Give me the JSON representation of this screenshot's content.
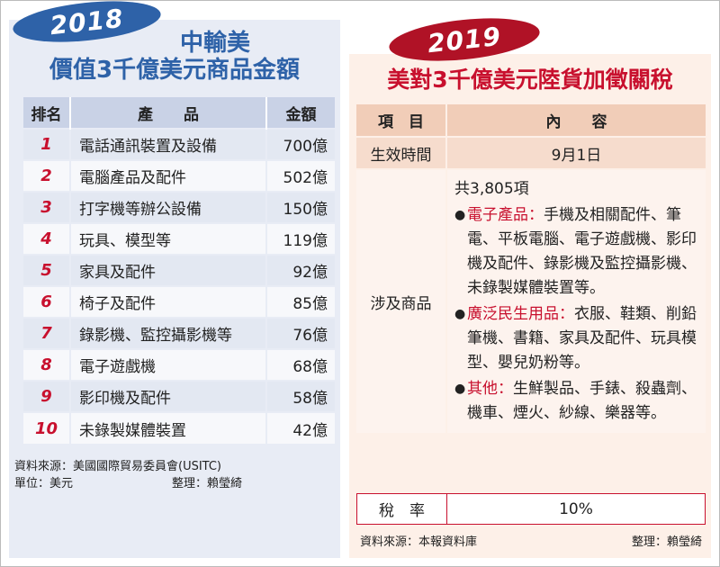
{
  "left": {
    "year": "2018",
    "title_line1": "中輸美",
    "title_line2": "價值3千億美元商品金額",
    "headers": {
      "rank": "排名",
      "product": "產　　品",
      "amount": "金額"
    },
    "rows": [
      {
        "rank": "1",
        "product": "電話通訊裝置及設備",
        "amount": "700億"
      },
      {
        "rank": "2",
        "product": "電腦產品及配件",
        "amount": "502億"
      },
      {
        "rank": "3",
        "product": "打字機等辦公設備",
        "amount": "150億"
      },
      {
        "rank": "4",
        "product": "玩具、模型等",
        "amount": "119億"
      },
      {
        "rank": "5",
        "product": "家具及配件",
        "amount": "92億"
      },
      {
        "rank": "6",
        "product": "椅子及配件",
        "amount": "85億"
      },
      {
        "rank": "7",
        "product": "錄影機、監控攝影機等",
        "amount": "76億"
      },
      {
        "rank": "8",
        "product": "電子遊戲機",
        "amount": "68億"
      },
      {
        "rank": "9",
        "product": "影印機及配件",
        "amount": "58億"
      },
      {
        "rank": "10",
        "product": "未錄製媒體裝置",
        "amount": "42億"
      }
    ],
    "source": "資料來源：美國國際貿易委員會(USITC)",
    "unit": "單位：美元",
    "editor": "整理：賴瑩綺"
  },
  "right": {
    "year": "2019",
    "title": "美對3千億美元陸貨加徵關稅",
    "headers": {
      "item": "項　目",
      "content": "內　　容"
    },
    "effective": {
      "label": "生效時間",
      "value": "9月1日"
    },
    "goods": {
      "label": "涉及商品",
      "total": "共3,805項",
      "categories": [
        {
          "name": "電子產品：",
          "items": "手機及相關配件、筆電、平板電腦、電子遊戲機、影印機及配件、錄影機及監控攝影機、未錄製媒體裝置等。"
        },
        {
          "name": "廣泛民生用品：",
          "items": "衣服、鞋類、削鉛筆機、書籍、家具及配件、玩具模型、嬰兒奶粉等。"
        },
        {
          "name": "其他：",
          "items": "生鮮製品、手錶、殺蟲劑、機車、煙火、紗線、樂器等。"
        }
      ]
    },
    "rate": {
      "label": "稅　率",
      "value": "10%"
    },
    "source": "資料來源：本報資料庫",
    "editor": "整理：賴瑩綺"
  },
  "colors": {
    "left_accent": "#2e62a8",
    "right_accent": "#c8102e",
    "left_bg": "#e8ecf5",
    "right_bg": "#fdf0e8"
  }
}
